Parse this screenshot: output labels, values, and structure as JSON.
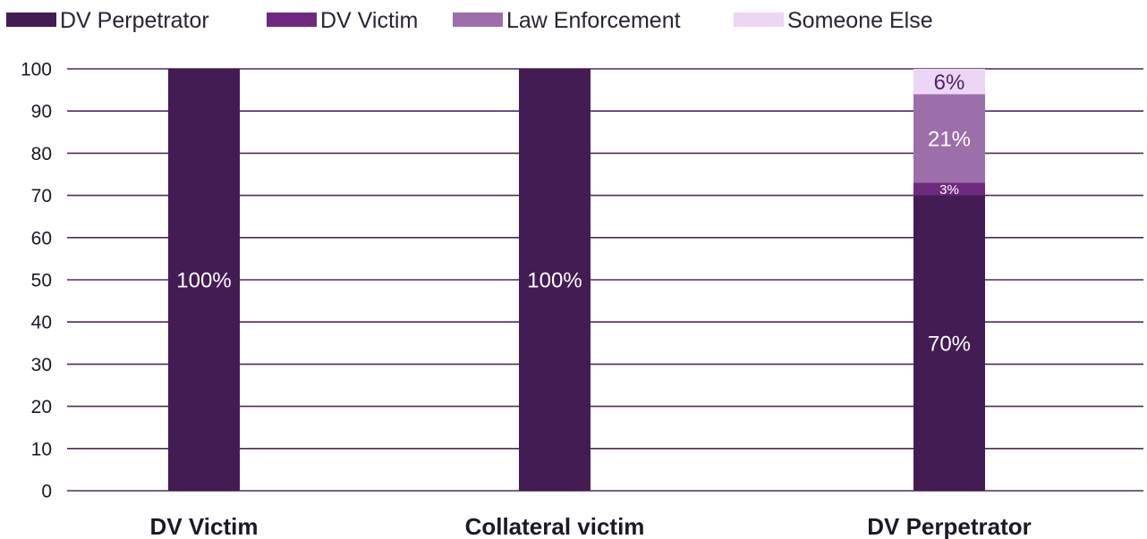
{
  "chart_data": {
    "type": "bar",
    "stacked": true,
    "categories": [
      "DV Victim",
      "Collateral victim",
      "DV Perpetrator"
    ],
    "series": [
      {
        "name": "DV Perpetrator",
        "color": "#421c52",
        "values": [
          100,
          100,
          70
        ],
        "labels": [
          "100%",
          "100%",
          "70%"
        ]
      },
      {
        "name": "DV Victim",
        "color": "#6e2a7e",
        "values": [
          0,
          0,
          3
        ],
        "labels": [
          "",
          "",
          "3%"
        ]
      },
      {
        "name": "Law Enforcement",
        "color": "#9c6faa",
        "values": [
          0,
          0,
          21
        ],
        "labels": [
          "",
          "",
          "21%"
        ]
      },
      {
        "name": "Someone Else",
        "color": "#ecd6f5",
        "values": [
          0,
          0,
          6
        ],
        "labels": [
          "",
          "",
          "6%"
        ]
      }
    ],
    "ylim": [
      0,
      100
    ],
    "yticks": [
      0,
      10,
      20,
      30,
      40,
      50,
      60,
      70,
      80,
      90,
      100
    ],
    "grid": true,
    "legend_position": "top-left",
    "gridline_color": "#4b2a5c"
  }
}
